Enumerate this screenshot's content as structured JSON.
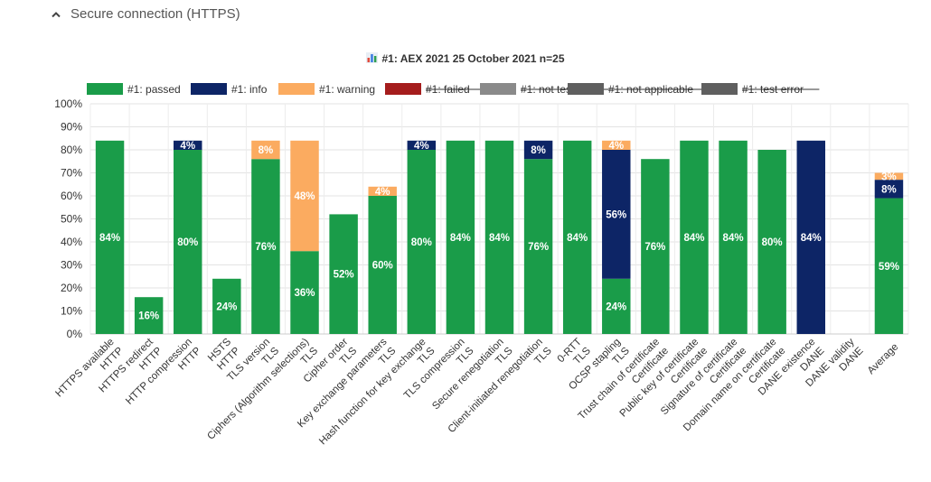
{
  "section": {
    "title": "Secure connection (HTTPS)"
  },
  "chart_data": {
    "type": "bar",
    "stacked": true,
    "title": "#1: AEX 2021 25 October 2021 n=25",
    "ylim": [
      0,
      100
    ],
    "y_ticks": [
      "0%",
      "10%",
      "20%",
      "30%",
      "40%",
      "50%",
      "60%",
      "70%",
      "80%",
      "90%",
      "100%"
    ],
    "legend_position": "top",
    "grid": true,
    "categories": [
      [
        "HTTPS available",
        "HTTP"
      ],
      [
        "HTTPS redirect",
        "HTTP"
      ],
      [
        "HTTP compression",
        "HTTP"
      ],
      [
        "HSTS",
        "HTTP"
      ],
      [
        "TLS version",
        "TLS"
      ],
      [
        "Ciphers (Algorithm selections)",
        "TLS"
      ],
      [
        "Cipher order",
        "TLS"
      ],
      [
        "Key exchange parameters",
        "TLS"
      ],
      [
        "Hash function for key exchange",
        "TLS"
      ],
      [
        "TLS compression",
        "TLS"
      ],
      [
        "Secure renegotiation",
        "TLS"
      ],
      [
        "Client-initiated renegotiation",
        "TLS"
      ],
      [
        "0-RTT",
        "TLS"
      ],
      [
        "OCSP stapling",
        "TLS"
      ],
      [
        "Trust chain of certificate",
        "Certificate"
      ],
      [
        "Public key of certificate",
        "Certificate"
      ],
      [
        "Signature of certificate",
        "Certificate"
      ],
      [
        "Domain name on certificate",
        "Certificate"
      ],
      [
        "DANE existence",
        "DANE"
      ],
      [
        "DANE validity",
        "DANE"
      ],
      [
        "Average",
        ""
      ]
    ],
    "series": [
      {
        "name": "#1: passed",
        "color": "#1a9c49",
        "strike": false,
        "values": [
          84,
          16,
          80,
          24,
          76,
          36,
          52,
          60,
          80,
          84,
          84,
          76,
          84,
          24,
          76,
          84,
          84,
          80,
          0,
          0,
          59
        ]
      },
      {
        "name": "#1: info",
        "color": "#0d2566",
        "strike": false,
        "values": [
          0,
          0,
          4,
          0,
          0,
          0,
          0,
          0,
          4,
          0,
          0,
          8,
          0,
          56,
          0,
          0,
          0,
          0,
          84,
          0,
          8
        ]
      },
      {
        "name": "#1: warning",
        "color": "#fbab60",
        "strike": false,
        "values": [
          0,
          0,
          0,
          0,
          8,
          48,
          0,
          4,
          0,
          0,
          0,
          0,
          0,
          4,
          0,
          0,
          0,
          0,
          0,
          0,
          3
        ]
      },
      {
        "name": "#1: failed",
        "color": "#a51d1d",
        "strike": true,
        "values": [
          0,
          0,
          0,
          0,
          0,
          0,
          0,
          0,
          0,
          0,
          0,
          0,
          0,
          0,
          0,
          0,
          0,
          0,
          0,
          0,
          0
        ]
      },
      {
        "name": "#1: not testable",
        "color": "#8a8a8a",
        "strike": true,
        "values": [
          0,
          0,
          0,
          0,
          0,
          0,
          0,
          0,
          0,
          0,
          0,
          0,
          0,
          0,
          0,
          0,
          0,
          0,
          0,
          0,
          0
        ]
      },
      {
        "name": "#1: not applicable",
        "color": "#5f5f5f",
        "strike": true,
        "values": [
          0,
          0,
          0,
          0,
          0,
          0,
          0,
          0,
          0,
          0,
          0,
          0,
          0,
          0,
          0,
          0,
          0,
          0,
          0,
          0,
          0
        ]
      },
      {
        "name": "#1: test error",
        "color": "#5f5f5f",
        "strike": true,
        "values": [
          0,
          0,
          0,
          0,
          0,
          0,
          0,
          0,
          0,
          0,
          0,
          0,
          0,
          0,
          0,
          0,
          0,
          0,
          0,
          0,
          0
        ]
      }
    ]
  }
}
